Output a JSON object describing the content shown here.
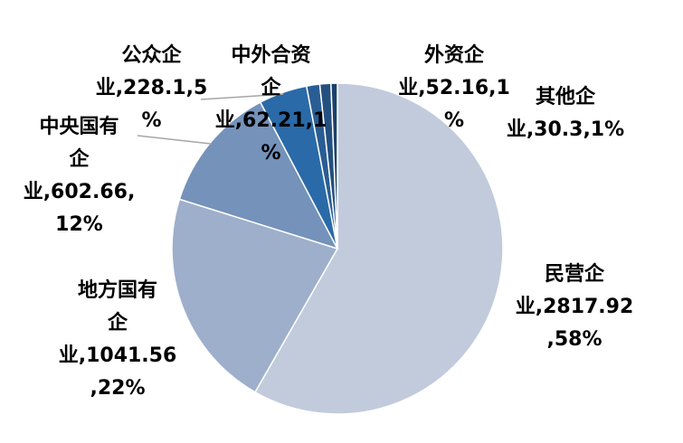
{
  "chart_data": {
    "type": "pie",
    "title": "",
    "slices": [
      {
        "name": "民营企业",
        "value": 2817.92,
        "percent": "58%",
        "color": "#c1cbdc",
        "label_color": "#1f3864",
        "label": {
          "line1": "民营企",
          "line2": "业,2817.92",
          "line3": ",58%"
        }
      },
      {
        "name": "地方国有企业",
        "value": 1041.56,
        "percent": "22%",
        "color": "#9eafcb",
        "label_color": "#1f3864",
        "label": {
          "line1": "地方国有",
          "line2": "企",
          "line3": "业,1041.56",
          "line4": ",22%"
        }
      },
      {
        "name": "中央国有企业",
        "value": 602.66,
        "percent": "12%",
        "color": "#7492ba",
        "label_color": "#1f3864",
        "label": {
          "line1": "中央国有",
          "line2": "企",
          "line3": "业,602.66,",
          "line4": "12%"
        }
      },
      {
        "name": "公众企业",
        "value": 228.1,
        "percent": "5%",
        "color": "#2a6aa8",
        "label_color": "#1f3864",
        "label": {
          "line1": "公众企",
          "line2": "业,228.1,5",
          "line3": "%"
        }
      },
      {
        "name": "中外合资企业",
        "value": 62.21,
        "percent": "1%",
        "color": "#2a5d94",
        "label_color": "#8497b0",
        "label": {
          "line1": "中外合资",
          "line2": "企",
          "line3": "业,62.21,1",
          "line4": "%"
        }
      },
      {
        "name": "外资企业",
        "value": 52.16,
        "percent": "1%",
        "color": "#23507f",
        "label_color": "#a6b3c8",
        "label": {
          "line1": "外资企",
          "line2": "业,52.16,1",
          "line3": "%"
        }
      },
      {
        "name": "其他企业",
        "value": 30.3,
        "percent": "1%",
        "color": "#1b416a",
        "label_color": "#c5cedc",
        "label": {
          "line1": "其他企",
          "line2": "业,30.3,1%"
        }
      }
    ],
    "legend": "none"
  }
}
